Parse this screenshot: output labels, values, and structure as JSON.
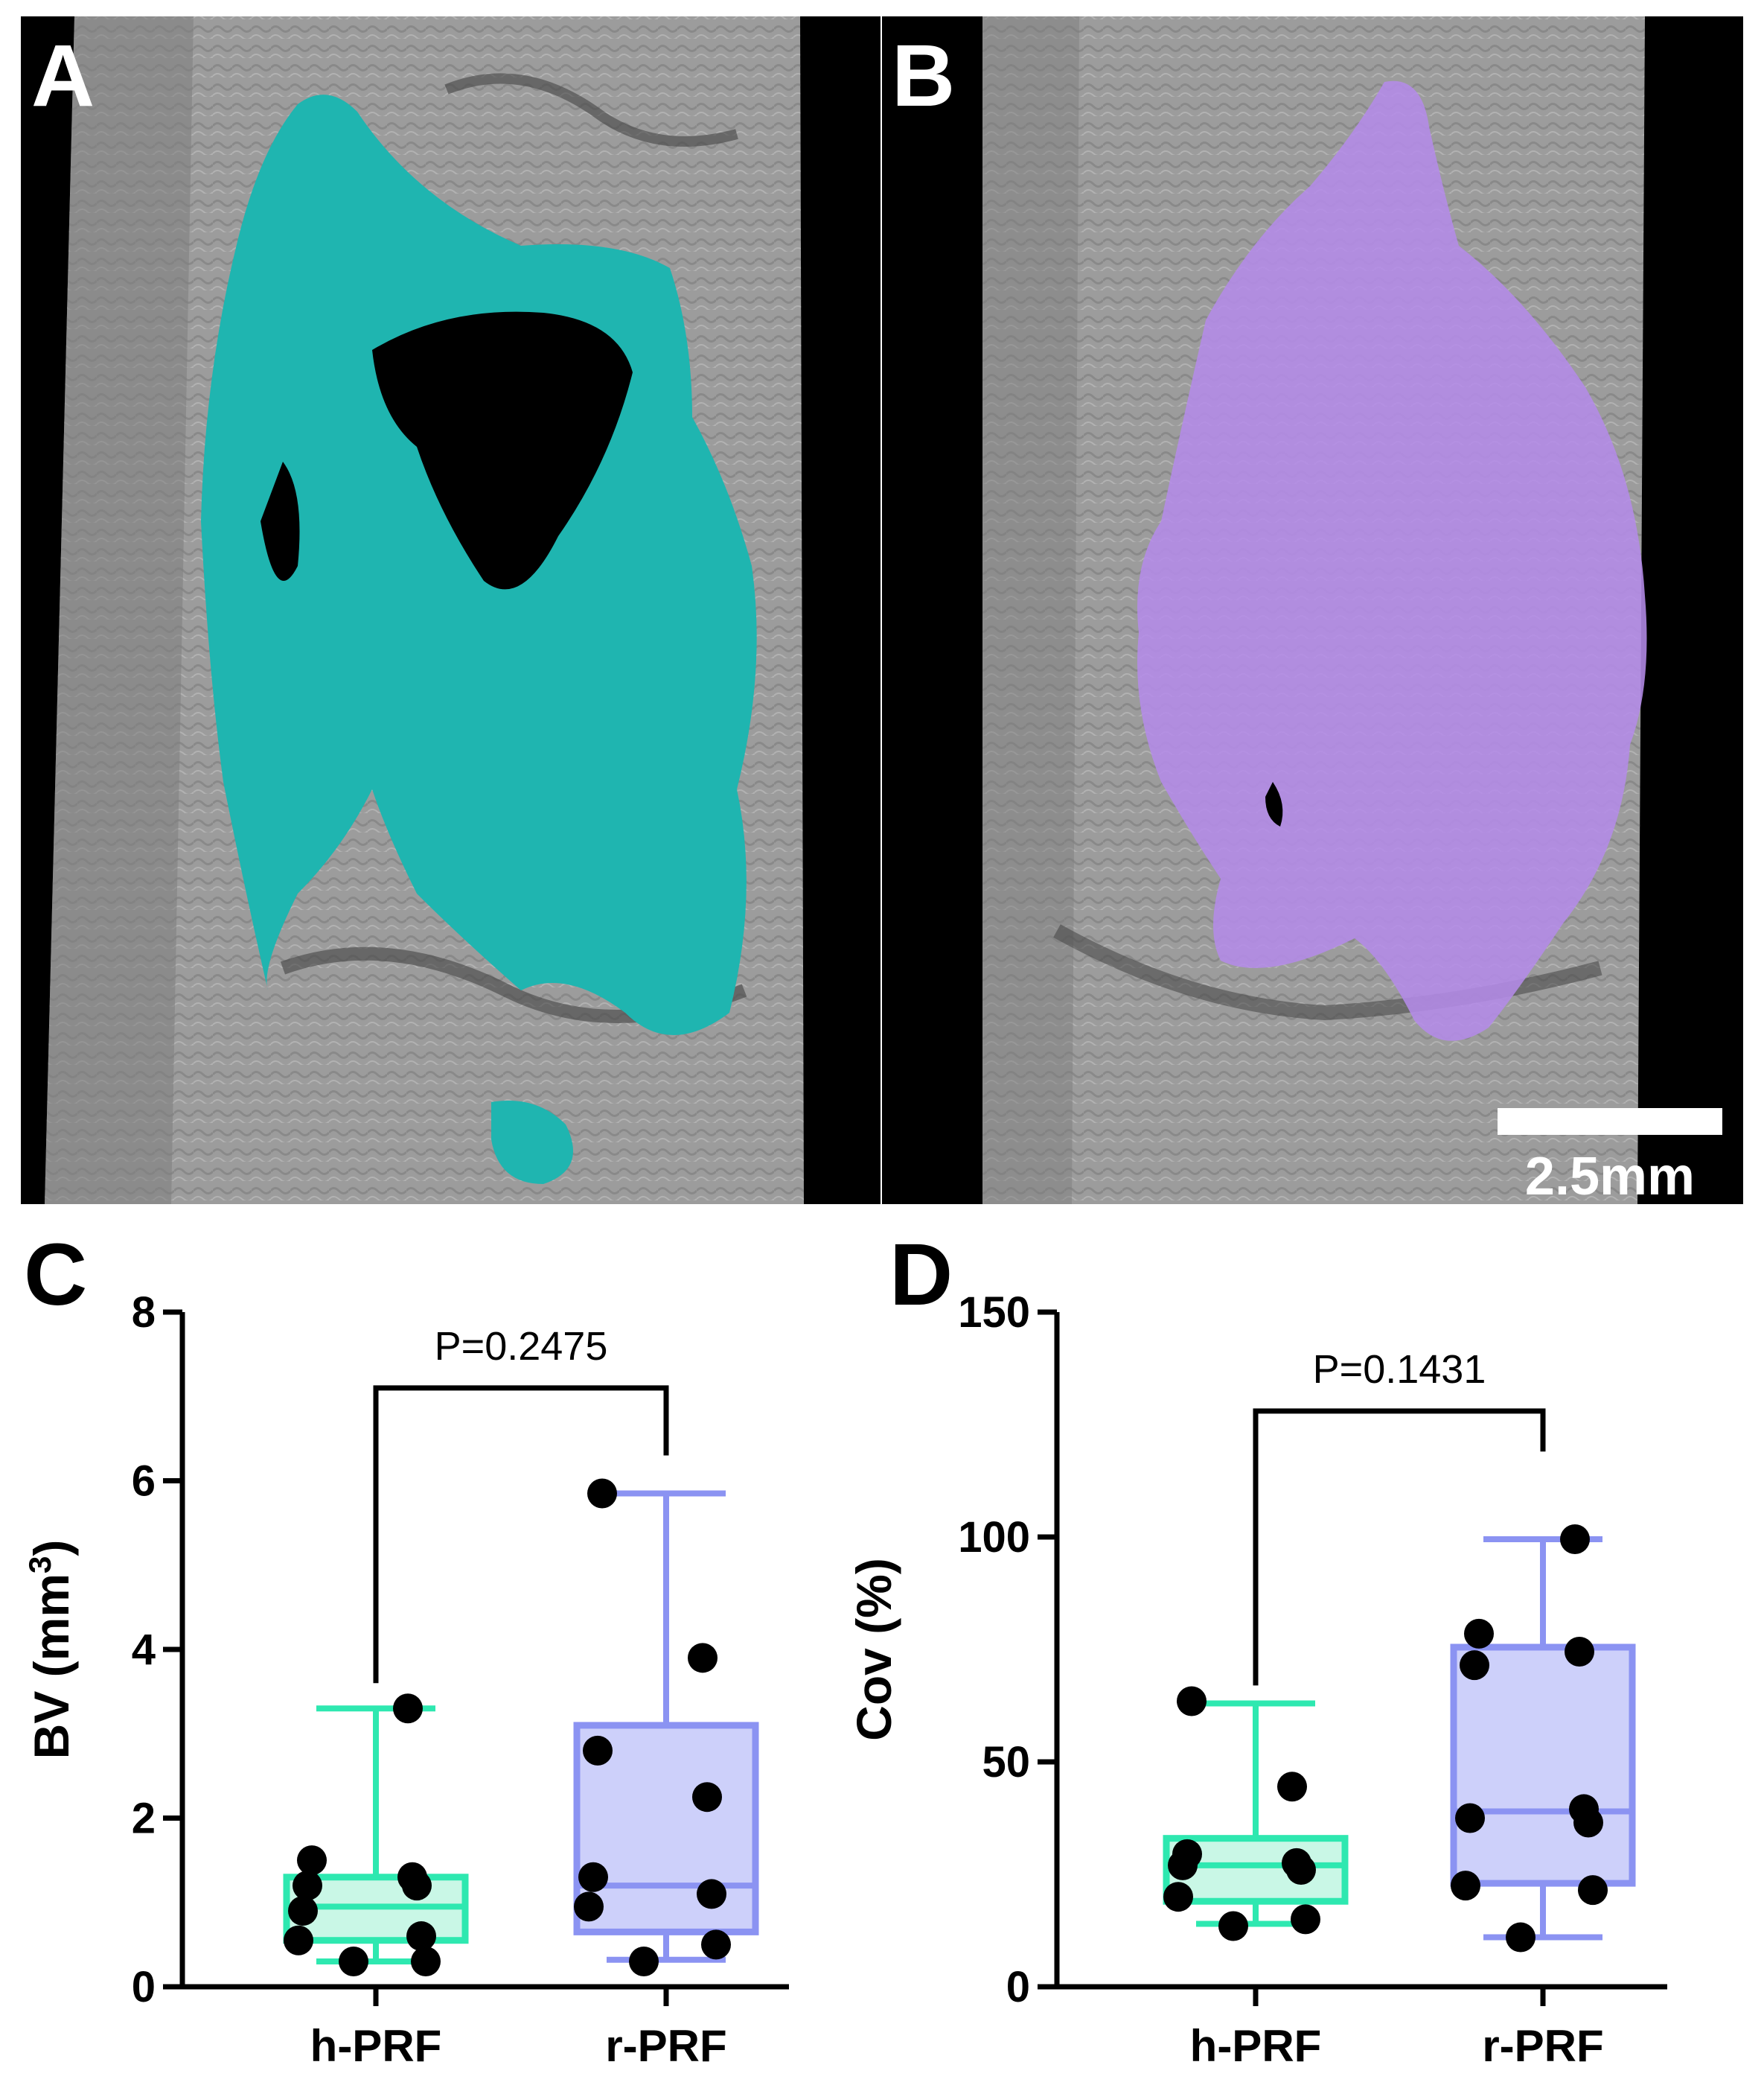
{
  "images": {
    "A": {
      "label": "A",
      "segment_color": "#1fb5b0"
    },
    "B": {
      "label": "B",
      "segment_color": "#b48be8",
      "scale_bar_label": "2.5mm"
    }
  },
  "chart_data": [
    {
      "panel": "C",
      "type": "box",
      "ylabel": "BV (mm",
      "ylabel_sup": "3",
      "ylabel_end": ")",
      "ylim": [
        0,
        8
      ],
      "yticks": [
        0,
        2,
        4,
        6,
        8
      ],
      "categories": [
        "h-PRF",
        "r-PRF"
      ],
      "pvalue": "P=0.2475",
      "groups": [
        {
          "category": "h-PRF",
          "color": "#2ee8b0",
          "fill": "#c9f7e6",
          "min": 0.3,
          "q1": 0.55,
          "median": 0.95,
          "q3": 1.3,
          "max": 3.3,
          "points": [
            0.3,
            0.3,
            0.55,
            0.6,
            0.9,
            1.2,
            1.2,
            1.3,
            1.5,
            3.3
          ]
        },
        {
          "category": "r-PRF",
          "color": "#8b93f2",
          "fill": "#cdd0fa",
          "min": 0.32,
          "q1": 0.65,
          "median": 1.2,
          "q3": 3.1,
          "max": 5.85,
          "points": [
            0.3,
            0.5,
            0.95,
            1.1,
            1.3,
            2.25,
            2.8,
            3.9,
            5.85
          ]
        }
      ]
    },
    {
      "panel": "D",
      "type": "box",
      "ylabel": "Cov (%)",
      "ylim": [
        0,
        150
      ],
      "yticks": [
        0,
        50,
        100,
        150
      ],
      "categories": [
        "h-PRF",
        "r-PRF"
      ],
      "pvalue": "P=0.1431",
      "groups": [
        {
          "category": "h-PRF",
          "color": "#2ee8b0",
          "fill": "#c9f7e6",
          "min": 14,
          "q1": 19,
          "median": 27,
          "q3": 33,
          "max": 63,
          "points": [
            13.5,
            15,
            20,
            26,
            27,
            27.5,
            29.5,
            44.5,
            63.5
          ]
        },
        {
          "category": "r-PRF",
          "color": "#8b93f2",
          "fill": "#cdd0fa",
          "min": 11,
          "q1": 23,
          "median": 39,
          "q3": 75.5,
          "max": 99.5,
          "points": [
            11,
            21.5,
            22.5,
            36.5,
            37.5,
            39.5,
            71.5,
            74.5,
            78.5,
            99.5
          ]
        }
      ]
    }
  ]
}
